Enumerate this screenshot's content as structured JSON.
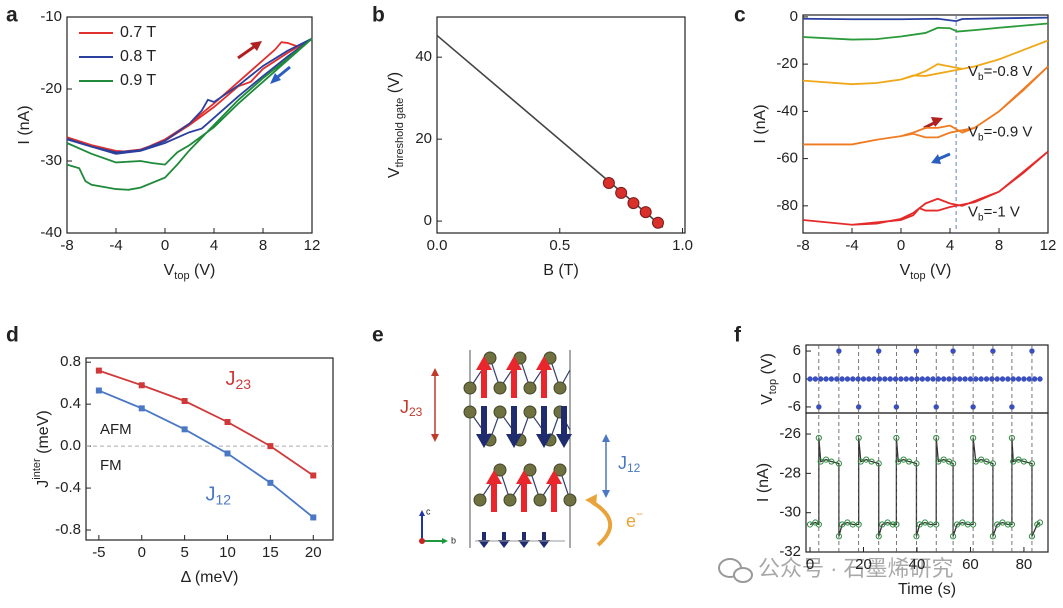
{
  "chart_data": [
    {
      "type": "line",
      "panel": "a",
      "x_label": [
        "V",
        {
          "sub": "top"
        },
        " (V)"
      ],
      "y_label": "I (nA)",
      "xlim": [
        -8,
        12
      ],
      "xticks": [
        -8,
        -4,
        0,
        4,
        8,
        12
      ],
      "ylim": [
        -40,
        -10
      ],
      "yticks": [
        -40,
        -30,
        -20,
        -10
      ],
      "legend": "upper left",
      "series": [
        {
          "name": "0.7 T",
          "color": "#e0302e",
          "x": [
            -8,
            -6,
            -4,
            -3,
            -2,
            0,
            2,
            4,
            6,
            8,
            9,
            9.5,
            10,
            11,
            12,
            10,
            8,
            7,
            6,
            4,
            2,
            0,
            -2,
            -4,
            -6,
            -8
          ],
          "values": [
            -26.7,
            -27.8,
            -28.6,
            -28.7,
            -28.5,
            -27,
            -24.8,
            -22,
            -19,
            -16,
            -14.5,
            -13.5,
            -13.6,
            -14.2,
            -13,
            -15,
            -17.2,
            -19,
            -19.6,
            -22.5,
            -25,
            -27.2,
            -28.4,
            -28.8,
            -28,
            -26.8
          ]
        },
        {
          "name": "0.8 T",
          "color": "#2b3f9e",
          "x": [
            -8,
            -6,
            -4,
            -2,
            0,
            2,
            3,
            3.5,
            4,
            6,
            8,
            10,
            12,
            10,
            8,
            6,
            4,
            3,
            2,
            0,
            -2,
            -4,
            -6,
            -8
          ],
          "values": [
            -26.9,
            -28,
            -28.8,
            -28.5,
            -27.2,
            -24.8,
            -23,
            -21.5,
            -21.8,
            -19.5,
            -16.8,
            -14.7,
            -13,
            -15.5,
            -18.2,
            -21,
            -24,
            -25.5,
            -26,
            -27.5,
            -28.6,
            -29,
            -28,
            -27
          ]
        },
        {
          "name": "0.9 T",
          "color": "#1e8a3a",
          "x": [
            -8,
            -7,
            -6.5,
            -6,
            -4,
            -3,
            -2,
            0,
            1,
            2,
            4,
            6,
            8,
            10,
            12,
            10,
            8,
            6,
            4,
            2,
            1,
            0,
            -1,
            -2,
            -4,
            -6,
            -8
          ],
          "values": [
            -30.5,
            -31,
            -32.8,
            -33.3,
            -33.9,
            -34,
            -33.7,
            -32.3,
            -30.5,
            -28.5,
            -25,
            -21.5,
            -18.5,
            -15.8,
            -13,
            -16,
            -19,
            -22,
            -25.3,
            -27.8,
            -28.8,
            -30.5,
            -30.3,
            -30,
            -30.2,
            -29,
            -27.5
          ]
        }
      ]
    },
    {
      "type": "scatter",
      "panel": "b",
      "x_label": "B (T)",
      "y_label": [
        "V",
        {
          "sub": "threshold gate"
        },
        " (V)"
      ],
      "xlim": [
        0,
        1.01
      ],
      "xticks": [
        {
          "value": 0,
          "label": "0.0"
        },
        0.5,
        {
          "value": 1,
          "label": "1.0"
        }
      ],
      "ylim": [
        -2.9,
        49.8
      ],
      "yticks": [
        0,
        20,
        40
      ],
      "fit": {
        "color": "#444444",
        "x": [
          0,
          0.92
        ],
        "values": [
          45.3,
          -1.5
        ]
      },
      "series": [
        {
          "color": "#d9302c",
          "x": [
            0.7,
            0.75,
            0.8,
            0.85,
            0.9
          ],
          "values": [
            9.3,
            6.9,
            4.4,
            2.2,
            -0.4
          ]
        }
      ]
    },
    {
      "type": "line",
      "panel": "c",
      "x_label": [
        "V",
        {
          "sub": "top"
        },
        " (V)"
      ],
      "y_label": "I (nA)",
      "xlim": [
        -8,
        12
      ],
      "xticks": [
        -8,
        -4,
        0,
        4,
        8,
        12
      ],
      "ylim": [
        -91.5,
        0.8
      ],
      "yticks": [
        0,
        -20,
        -40,
        -60,
        -80
      ],
      "vline": 4.5,
      "vline_color": "#5b7fd0",
      "series": [
        {
          "color": "#2b3f9e",
          "x": [
            -8,
            -4,
            0,
            3,
            4.5,
            5,
            8,
            12
          ],
          "values": [
            -0.8,
            -1,
            -1,
            -0.8,
            -1.8,
            -0.9,
            -0.6,
            -0.3
          ]
        },
        {
          "color": "#2a9a3a",
          "x": [
            -8,
            -4,
            -2,
            0,
            2,
            3,
            4,
            4.6,
            6,
            8,
            12
          ],
          "values": [
            -8.5,
            -9.6,
            -9.4,
            -8.3,
            -6.8,
            -4.6,
            -4.8,
            -6.2,
            -5.6,
            -4.6,
            -2.8
          ]
        },
        {
          "color": "#f0a818",
          "label": [
            "V",
            {
              "sub": "b"
            },
            "=-0.8 V"
          ],
          "x": [
            -8,
            -4,
            -2,
            0,
            1,
            2,
            3,
            4,
            5,
            6,
            8,
            10,
            12,
            8,
            6,
            4,
            3,
            2,
            1,
            0,
            -2,
            -4,
            -8
          ],
          "values": [
            -27,
            -28.5,
            -28,
            -26.5,
            -25,
            -23,
            -20,
            -21,
            -22,
            -21,
            -18,
            -14,
            -10,
            -18,
            -21,
            -23,
            -24,
            -25,
            -24.8,
            -26.5,
            -28,
            -28.5,
            -27
          ]
        },
        {
          "color": "#f07a20",
          "label": [
            "V",
            {
              "sub": "b"
            },
            "=-0.9 V"
          ],
          "x": [
            -8,
            -4,
            -2,
            0,
            1,
            2,
            3,
            4,
            5,
            6,
            8,
            10,
            12,
            8,
            6,
            4,
            3,
            2,
            1,
            0,
            -2,
            -4,
            -8
          ],
          "values": [
            -54,
            -54,
            -52,
            -50.5,
            -49,
            -47,
            -47,
            -46,
            -49,
            -47,
            -40,
            -31,
            -21,
            -40,
            -47,
            -49,
            -51,
            -51,
            -49.5,
            -50.5,
            -52,
            -54,
            -54
          ]
        },
        {
          "color": "#e52a2a",
          "label": [
            "V",
            {
              "sub": "b"
            },
            "=-1 V"
          ],
          "x": [
            -8,
            -4,
            -2,
            0,
            1,
            2,
            3,
            4,
            5,
            6,
            8,
            10,
            12,
            8,
            6,
            4,
            3,
            2,
            1.5,
            1,
            0,
            -4,
            -8
          ],
          "values": [
            -86,
            -88,
            -87.5,
            -85.5,
            -83,
            -79,
            -77,
            -79,
            -80,
            -78,
            -74,
            -66,
            -57,
            -74,
            -78.5,
            -80.5,
            -82,
            -82,
            -81,
            -84,
            -86,
            -88,
            -86
          ]
        }
      ]
    },
    {
      "type": "line",
      "panel": "d",
      "marker": "square",
      "x_label": "Δ (meV)",
      "y_label": [
        "J",
        {
          "sup": "inter"
        },
        " (meV)"
      ],
      "xlim": [
        -6.5,
        22.3
      ],
      "xticks": [
        -5,
        0,
        5,
        10,
        15,
        20
      ],
      "ylim": [
        -0.895,
        0.84
      ],
      "yticks": [
        0.8,
        0.4,
        {
          "value": 0,
          "label": "0.0"
        },
        -0.4,
        -0.8
      ],
      "hline": 0,
      "annotations": [
        "AFM",
        "FM"
      ],
      "x": [
        -5,
        0,
        5,
        10,
        15,
        20
      ],
      "series": [
        {
          "name": [
            "J",
            {
              "sub": "23"
            }
          ],
          "color": "#d0393a",
          "values": [
            0.72,
            0.58,
            0.43,
            0.23,
            0.0,
            -0.28
          ]
        },
        {
          "name": [
            "J",
            {
              "sub": "12"
            }
          ],
          "color": "#4a78c4",
          "values": [
            0.53,
            0.36,
            0.16,
            -0.07,
            -0.35,
            -0.68
          ]
        }
      ]
    },
    {
      "type": "stacked",
      "panel": "f",
      "x_label": "Time (s)",
      "xlim": [
        -1.5,
        89
      ],
      "xticks": [
        0,
        20,
        40,
        60,
        80
      ],
      "subplots": [
        {
          "y_label": [
            "V",
            {
              "sub": "top"
            },
            " (V)"
          ],
          "ylim": [
            -7.3,
            7.3
          ],
          "yticks": [
            6,
            0,
            -6
          ],
          "series": [
            {
              "color": "#3a4fc0",
              "x": [
                0,
                2,
                4,
                6,
                8,
                10,
                12,
                14,
                16,
                18,
                20,
                22,
                24,
                26,
                28,
                30,
                32,
                34,
                36,
                38,
                40,
                42,
                44,
                46,
                48,
                50,
                52,
                54,
                56,
                58,
                60,
                62,
                64,
                66,
                68,
                70,
                72,
                74,
                76,
                78,
                80,
                82,
                84,
                86
              ],
              "values": [
                0,
                0,
                0,
                0,
                0,
                0,
                0,
                0,
                0,
                0,
                0,
                0,
                0,
                0,
                0,
                0,
                0,
                0,
                0,
                0,
                0,
                0,
                0,
                0,
                0,
                0,
                0,
                0,
                0,
                0,
                0,
                0,
                0,
                0,
                0,
                0,
                0,
                0,
                0,
                0,
                0,
                0,
                0,
                0
              ]
            },
            {
              "color": "#3a4fc0",
              "x": [
                3.3,
                10.8,
                18.2,
                25.7,
                32.3,
                39.8,
                47.2,
                53.5,
                61,
                68.4,
                75.5,
                83
              ],
              "values": [
                -6,
                6,
                -6,
                6,
                -6,
                6,
                -6,
                6,
                -6,
                6,
                -6,
                6
              ]
            }
          ]
        },
        {
          "y_label": "I (nA)",
          "ylim": [
            -32,
            -24.93
          ],
          "yticks": [
            -32,
            -30,
            -28,
            -26
          ],
          "series": [
            {
              "color": "#2e8b3f",
              "line_color": "#333333",
              "x": [
                0,
                2,
                3.3,
                3.3,
                4,
                6,
                8,
                10.8,
                10.8,
                12,
                14,
                16,
                18.2,
                18.2,
                19,
                21,
                23,
                25.7,
                25.7,
                27,
                29,
                31,
                32.3,
                32.3,
                33,
                35,
                37,
                39.8,
                39.8,
                41,
                43,
                45,
                47.2,
                47.2,
                48,
                50,
                52,
                53.5,
                53.5,
                55,
                57,
                59,
                61,
                61,
                62,
                64,
                66,
                68.4,
                68.4,
                70,
                72,
                74,
                75.5,
                75.5,
                76,
                78,
                80,
                83,
                83,
                85,
                86
              ],
              "values": [
                -30.6,
                -30.5,
                -30.6,
                -26.2,
                -27.4,
                -27.3,
                -27.4,
                -27.5,
                -31.2,
                -30.6,
                -30.5,
                -30.6,
                -30.6,
                -26.2,
                -27.4,
                -27.3,
                -27.4,
                -27.5,
                -31.2,
                -30.6,
                -30.5,
                -30.6,
                -30.6,
                -26.2,
                -27.4,
                -27.3,
                -27.4,
                -27.5,
                -31.2,
                -30.6,
                -30.5,
                -30.6,
                -30.6,
                -26.2,
                -27.4,
                -27.3,
                -27.4,
                -27.5,
                -31.2,
                -30.6,
                -30.5,
                -30.6,
                -30.6,
                -26.2,
                -27.4,
                -27.3,
                -27.4,
                -27.5,
                -31.2,
                -30.6,
                -30.5,
                -30.6,
                -30.6,
                -26.2,
                -27.4,
                -27.3,
                -27.4,
                -27.5,
                -31.2,
                -30.6,
                -30.5
              ]
            }
          ]
        }
      ]
    }
  ],
  "diagram_e": {
    "panel": "e",
    "j23": [
      "J",
      {
        "sub": "23"
      }
    ],
    "j12": [
      "J",
      {
        "sub": "12"
      }
    ],
    "electron": [
      "e",
      {
        "sup": "−"
      }
    ],
    "axis_c": "c",
    "axis_b": "b"
  },
  "watermark": "公众号 · 石墨烯研究"
}
